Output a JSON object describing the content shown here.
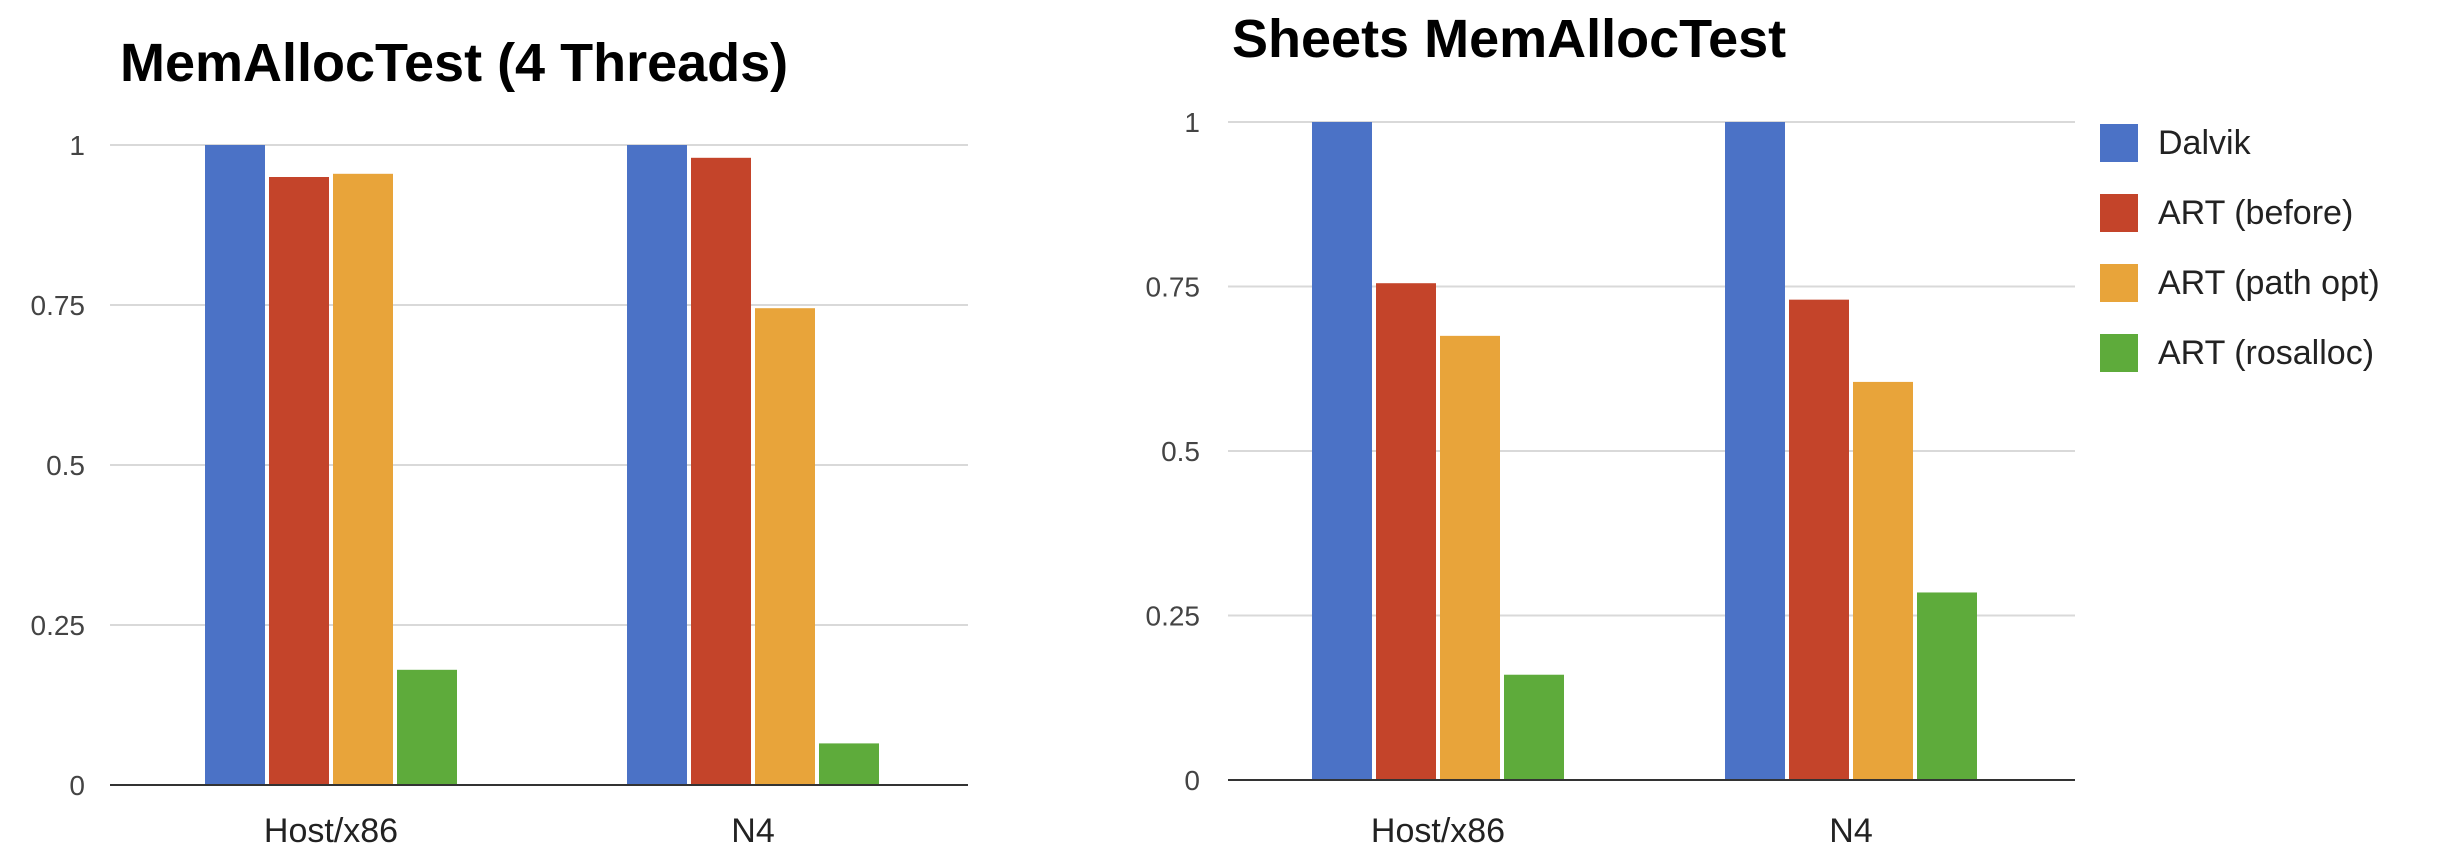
{
  "colors": {
    "dalvik": "#4b72c6",
    "art_before": "#c4442a",
    "art_path_opt": "#e8a43a",
    "art_rosalloc": "#5eab3b",
    "grid": "#d9d9d9",
    "axis": "#333333"
  },
  "legend": {
    "items": [
      {
        "label": "Dalvik",
        "color": "#4b72c6"
      },
      {
        "label": "ART (before)",
        "color": "#c4442a"
      },
      {
        "label": "ART (path opt)",
        "color": "#e8a43a"
      },
      {
        "label": "ART (rosalloc)",
        "color": "#5eab3b"
      }
    ]
  },
  "chart_data": [
    {
      "type": "bar",
      "title": "MemAllocTest (4 Threads)",
      "categories": [
        "Host/x86",
        "N4"
      ],
      "series": [
        {
          "name": "Dalvik",
          "values": [
            1.0,
            1.0
          ]
        },
        {
          "name": "ART (before)",
          "values": [
            0.95,
            0.98
          ]
        },
        {
          "name": "ART (path opt)",
          "values": [
            0.955,
            0.745
          ]
        },
        {
          "name": "ART (rosalloc)",
          "values": [
            0.18,
            0.065
          ]
        }
      ],
      "ylim": [
        0,
        1
      ],
      "yticks": [
        "0",
        "0.25",
        "0.5",
        "0.75",
        "1"
      ],
      "grid": true,
      "legend": "none"
    },
    {
      "type": "bar",
      "title": "Sheets MemAllocTest",
      "categories": [
        "Host/x86",
        "N4"
      ],
      "series": [
        {
          "name": "Dalvik",
          "values": [
            1.0,
            1.0
          ]
        },
        {
          "name": "ART (before)",
          "values": [
            0.755,
            0.73
          ]
        },
        {
          "name": "ART (path opt)",
          "values": [
            0.675,
            0.605
          ]
        },
        {
          "name": "ART (rosalloc)",
          "values": [
            0.16,
            0.285
          ]
        }
      ],
      "ylim": [
        0,
        1
      ],
      "yticks": [
        "0",
        "0.25",
        "0.5",
        "0.75",
        "1"
      ],
      "grid": true,
      "legend": "right"
    }
  ]
}
